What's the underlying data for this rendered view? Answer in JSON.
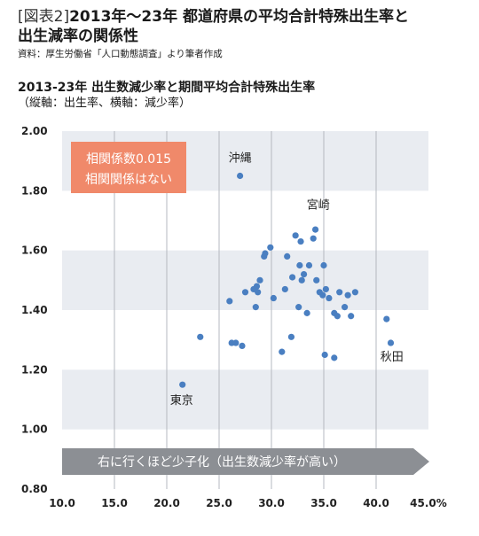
{
  "header": {
    "tag": "[図表2]",
    "title_line1": "2013年〜23年 都道府県の平均合計特殊出生率と",
    "title_line2": "出生減率の関係性",
    "source": "資料：厚生労働省「人口動態調査」より筆者作成"
  },
  "chart_data": {
    "type": "scatter",
    "title": "2013-23年 出生数減少率と期間平均合計特殊出生率",
    "axis_note": "（縦軸：出生率、横軸：減少率）",
    "xlim": [
      10,
      45
    ],
    "ylim": [
      0.8,
      2.0
    ],
    "x_ticks": [
      "10.0",
      "15.0",
      "20.0",
      "25.0",
      "30.0",
      "35.0",
      "40.0",
      "45.0%"
    ],
    "y_ticks": [
      "0.80",
      "1.00",
      "1.20",
      "1.40",
      "1.60",
      "1.80",
      "2.00"
    ],
    "grid_vertical": true,
    "band_color": "#e9ecf1",
    "point_color": "#4a7fc1",
    "correlation_box": {
      "line1": "相関係数0.015",
      "line2": "相関関係はない",
      "color": "#f0896a"
    },
    "arrow": {
      "text": "右に行くほど少子化（出生数減少率が高い）",
      "color": "#8c8f94"
    },
    "labels": [
      {
        "text": "沖縄",
        "x": 27.0,
        "y": 1.85
      },
      {
        "text": "宮崎",
        "x": 34.3,
        "y": 1.68
      },
      {
        "text": "東京",
        "x": 21.5,
        "y": 1.15
      },
      {
        "text": "秋田",
        "x": 41.5,
        "y": 1.29
      }
    ],
    "points": [
      [
        27.0,
        1.85
      ],
      [
        21.5,
        1.15
      ],
      [
        23.2,
        1.31
      ],
      [
        26.0,
        1.43
      ],
      [
        26.2,
        1.29
      ],
      [
        26.6,
        1.29
      ],
      [
        27.2,
        1.28
      ],
      [
        27.5,
        1.46
      ],
      [
        28.3,
        1.47
      ],
      [
        28.5,
        1.41
      ],
      [
        28.6,
        1.48
      ],
      [
        28.7,
        1.46
      ],
      [
        28.9,
        1.5
      ],
      [
        29.3,
        1.58
      ],
      [
        29.4,
        1.59
      ],
      [
        29.9,
        1.61
      ],
      [
        30.2,
        1.44
      ],
      [
        31.0,
        1.26
      ],
      [
        31.3,
        1.47
      ],
      [
        31.5,
        1.58
      ],
      [
        31.9,
        1.31
      ],
      [
        32.0,
        1.51
      ],
      [
        32.3,
        1.65
      ],
      [
        32.6,
        1.41
      ],
      [
        32.7,
        1.55
      ],
      [
        32.8,
        1.63
      ],
      [
        32.9,
        1.5
      ],
      [
        33.1,
        1.52
      ],
      [
        33.4,
        1.39
      ],
      [
        33.6,
        1.55
      ],
      [
        34.0,
        1.64
      ],
      [
        34.2,
        1.67
      ],
      [
        34.3,
        1.5
      ],
      [
        34.6,
        1.46
      ],
      [
        34.9,
        1.45
      ],
      [
        35.0,
        1.55
      ],
      [
        35.1,
        1.25
      ],
      [
        35.2,
        1.47
      ],
      [
        35.5,
        1.44
      ],
      [
        36.0,
        1.24
      ],
      [
        36.0,
        1.39
      ],
      [
        36.3,
        1.38
      ],
      [
        36.5,
        1.46
      ],
      [
        37.0,
        1.41
      ],
      [
        37.3,
        1.45
      ],
      [
        37.6,
        1.38
      ],
      [
        38.0,
        1.46
      ],
      [
        41.0,
        1.37
      ],
      [
        41.4,
        1.29
      ]
    ]
  }
}
